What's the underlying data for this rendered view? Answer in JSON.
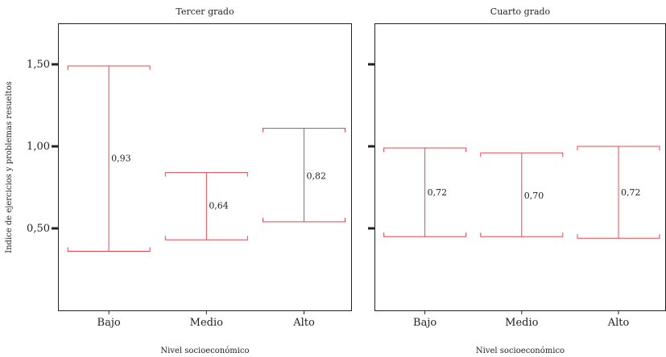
{
  "chart_data": {
    "type": "errorbar",
    "ylabel": "Indice de ejercicios y problemas resueltos",
    "ylim": [
      0.0,
      1.75
    ],
    "yticks": [
      {
        "value": 0.5,
        "label": "0,50"
      },
      {
        "value": 1.0,
        "label": "1,00"
      },
      {
        "value": 1.5,
        "label": "1,50"
      }
    ],
    "categories": [
      "Bajo",
      "Medio",
      "Alto"
    ],
    "panels": [
      {
        "title": "Tercer grado",
        "xlabel": "Nivel socioeconómico",
        "bars": [
          {
            "category": "Bajo",
            "mean": 0.93,
            "label": "0,93",
            "lower": 0.36,
            "upper": 1.49
          },
          {
            "category": "Medio",
            "mean": 0.64,
            "label": "0,64",
            "lower": 0.43,
            "upper": 0.84
          },
          {
            "category": "Alto",
            "mean": 0.82,
            "label": "0,82",
            "lower": 0.54,
            "upper": 1.11
          }
        ]
      },
      {
        "title": "Cuarto grado",
        "xlabel": "Nivel socioeconómico",
        "bars": [
          {
            "category": "Bajo",
            "mean": 0.72,
            "label": "0,72",
            "lower": 0.45,
            "upper": 0.99
          },
          {
            "category": "Medio",
            "mean": 0.7,
            "label": "0,70",
            "lower": 0.45,
            "upper": 0.96
          },
          {
            "category": "Alto",
            "mean": 0.72,
            "label": "0,72",
            "lower": 0.44,
            "upper": 1.0
          }
        ]
      }
    ],
    "colors": {
      "bar": "#e8474f",
      "frame": "#222222"
    },
    "grid": false
  }
}
